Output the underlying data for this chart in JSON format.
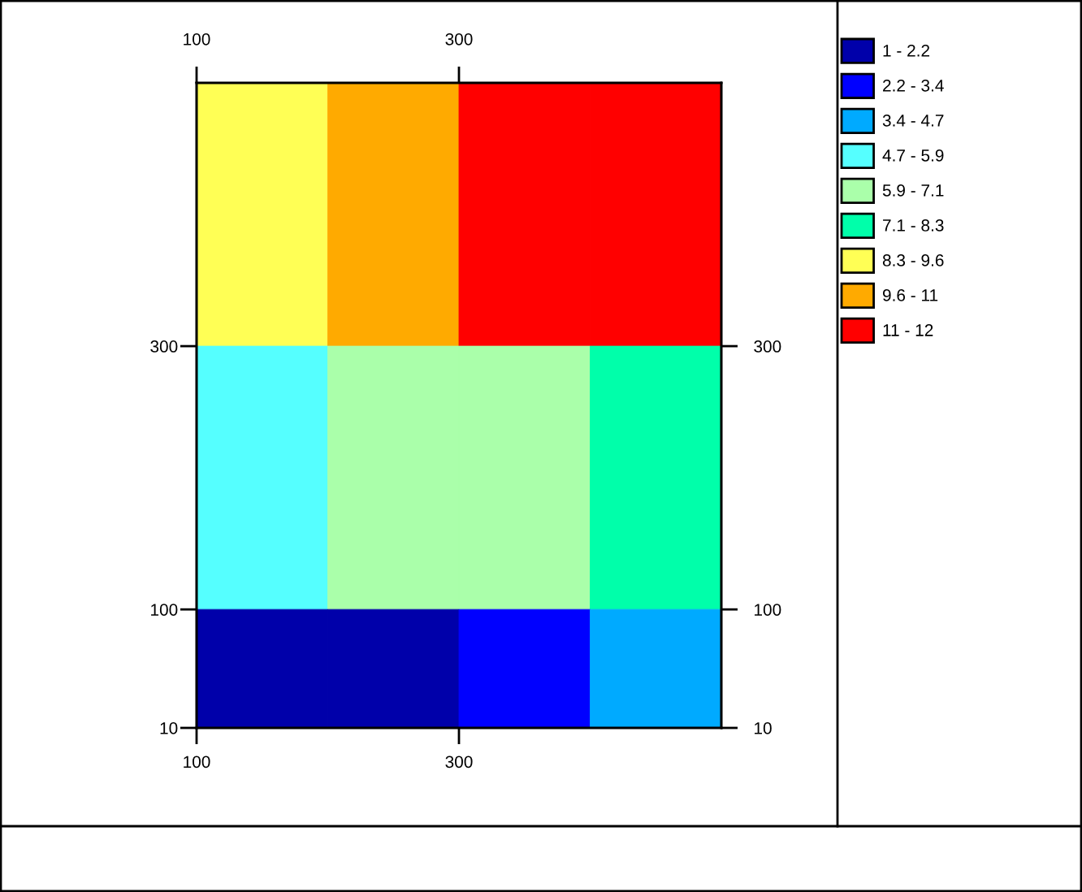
{
  "chart_data": {
    "type": "heatmap",
    "x": [
      150,
      250,
      350,
      450
    ],
    "y": [
      400,
      200,
      55
    ],
    "cells": [
      [
        8.9,
        10.2,
        11.4,
        11.4
      ],
      [
        5.3,
        6.5,
        6.5,
        7.7
      ],
      [
        1.6,
        1.6,
        2.8,
        4.1
      ]
    ],
    "colors": [
      "#0000aa",
      "#0000ff",
      "#00aaff",
      "#55ffff",
      "#aaffaa",
      "#00ffaa",
      "#ffff55",
      "#ffaa00",
      "#ff0000"
    ],
    "clim": [
      1,
      12
    ],
    "cticks": [
      {
        "value": 1.6,
        "label": "1 - 2.2"
      },
      {
        "value": 2.8,
        "label": "2.2 - 3.4"
      },
      {
        "value": 4.1,
        "label": "3.4 - 4.7"
      },
      {
        "value": 5.3,
        "label": "4.7 - 5.9"
      },
      {
        "value": 6.5,
        "label": "5.9 - 7.1"
      },
      {
        "value": 7.7,
        "label": "7.1 - 8.3"
      },
      {
        "value": 8.9,
        "label": "8.3 - 9.6"
      },
      {
        "value": 10.2,
        "label": "9.6 - 11"
      },
      {
        "value": 11.4,
        "label": "11 - 12"
      }
    ],
    "xlim": [
      100,
      500
    ],
    "xticks": [
      100,
      300
    ],
    "x2lim": [
      100,
      500
    ],
    "x2ticks": [
      100,
      300
    ],
    "ylim": [
      10,
      500
    ],
    "yticks": [
      10,
      100,
      300
    ],
    "y2lim": [
      10,
      500
    ],
    "y2ticks": [
      10,
      100,
      300
    ]
  }
}
